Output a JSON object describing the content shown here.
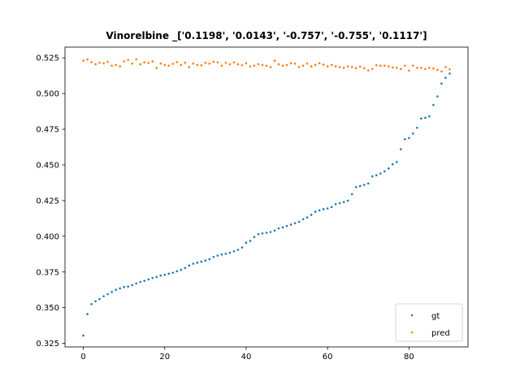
{
  "chart_data": {
    "type": "scatter",
    "title": "Vinorelbine _['0.1198', '0.0143', '-0.757', '-0.755', '0.1117']",
    "xlabel": "",
    "ylabel": "",
    "xlim": [
      -4.5,
      94.5
    ],
    "ylim": [
      0.3225,
      0.5325
    ],
    "xticks": [
      0,
      20,
      40,
      60,
      80
    ],
    "yticks": [
      0.325,
      0.35,
      0.375,
      0.4,
      0.425,
      0.45,
      0.475,
      0.5,
      0.525
    ],
    "ytick_labels": [
      "0.325",
      "0.350",
      "0.375",
      "0.400",
      "0.425",
      "0.450",
      "0.475",
      "0.500",
      "0.525"
    ],
    "grid": false,
    "legend_position": "lower right",
    "series": [
      {
        "name": "gt",
        "color": "#1f77b4",
        "x": [
          0,
          1,
          2,
          3,
          4,
          5,
          6,
          7,
          8,
          9,
          10,
          11,
          12,
          13,
          14,
          15,
          16,
          17,
          18,
          19,
          20,
          21,
          22,
          23,
          24,
          25,
          26,
          27,
          28,
          29,
          30,
          31,
          32,
          33,
          34,
          35,
          36,
          37,
          38,
          39,
          40,
          41,
          42,
          43,
          44,
          45,
          46,
          47,
          48,
          49,
          50,
          51,
          52,
          53,
          54,
          55,
          56,
          57,
          58,
          59,
          60,
          61,
          62,
          63,
          64,
          65,
          66,
          67,
          68,
          69,
          70,
          71,
          72,
          73,
          74,
          75,
          76,
          77,
          78,
          79,
          80,
          81,
          82,
          83,
          84,
          85,
          86,
          87,
          88,
          89,
          90
        ],
        "y": [
          0.3305,
          0.3455,
          0.3525,
          0.3545,
          0.356,
          0.358,
          0.3595,
          0.361,
          0.3625,
          0.3635,
          0.3645,
          0.3648,
          0.3658,
          0.367,
          0.368,
          0.3688,
          0.3698,
          0.3708,
          0.3715,
          0.3725,
          0.373,
          0.3738,
          0.3745,
          0.3755,
          0.3765,
          0.3778,
          0.3795,
          0.3808,
          0.3815,
          0.3822,
          0.383,
          0.384,
          0.3855,
          0.3865,
          0.3872,
          0.3878,
          0.3885,
          0.3895,
          0.3905,
          0.3922,
          0.3955,
          0.3968,
          0.3995,
          0.4015,
          0.402,
          0.4025,
          0.403,
          0.404,
          0.4055,
          0.4062,
          0.4072,
          0.4082,
          0.4092,
          0.4102,
          0.412,
          0.4132,
          0.415,
          0.4172,
          0.4182,
          0.419,
          0.4195,
          0.4205,
          0.4225,
          0.4232,
          0.424,
          0.425,
          0.4295,
          0.4345,
          0.4352,
          0.436,
          0.437,
          0.442,
          0.4428,
          0.444,
          0.4455,
          0.4475,
          0.4505,
          0.452,
          0.461,
          0.468,
          0.4688,
          0.472,
          0.476,
          0.4825,
          0.483,
          0.484,
          0.492,
          0.498,
          0.507,
          0.511,
          0.514
        ]
      },
      {
        "name": "pred",
        "color": "#ff7f0e",
        "x": [
          0,
          1,
          2,
          3,
          4,
          5,
          6,
          7,
          8,
          9,
          10,
          11,
          12,
          13,
          14,
          15,
          16,
          17,
          18,
          19,
          20,
          21,
          22,
          23,
          24,
          25,
          26,
          27,
          28,
          29,
          30,
          31,
          32,
          33,
          34,
          35,
          36,
          37,
          38,
          39,
          40,
          41,
          42,
          43,
          44,
          45,
          46,
          47,
          48,
          49,
          50,
          51,
          52,
          53,
          54,
          55,
          56,
          57,
          58,
          59,
          60,
          61,
          62,
          63,
          64,
          65,
          66,
          67,
          68,
          69,
          70,
          71,
          72,
          73,
          74,
          75,
          76,
          77,
          78,
          79,
          80,
          81,
          82,
          83,
          84,
          85,
          86,
          87,
          88,
          89,
          90
        ],
        "y": [
          0.523,
          0.5238,
          0.522,
          0.5205,
          0.5215,
          0.5212,
          0.5222,
          0.5195,
          0.52,
          0.519,
          0.5225,
          0.5235,
          0.521,
          0.524,
          0.5205,
          0.5218,
          0.5215,
          0.5225,
          0.518,
          0.521,
          0.52,
          0.5195,
          0.5208,
          0.522,
          0.52,
          0.5215,
          0.5185,
          0.521,
          0.52,
          0.5198,
          0.5215,
          0.521,
          0.5222,
          0.5218,
          0.5195,
          0.5215,
          0.5205,
          0.5218,
          0.5205,
          0.5198,
          0.5212,
          0.519,
          0.5195,
          0.5205,
          0.52,
          0.5195,
          0.5185,
          0.523,
          0.5205,
          0.5195,
          0.52,
          0.5212,
          0.521,
          0.5185,
          0.5195,
          0.521,
          0.519,
          0.52,
          0.5212,
          0.5202,
          0.519,
          0.52,
          0.519,
          0.5185,
          0.518,
          0.519,
          0.5185,
          0.5178,
          0.5188,
          0.5178,
          0.5162,
          0.5172,
          0.5198,
          0.5195,
          0.5195,
          0.519,
          0.5182,
          0.518,
          0.5172,
          0.5195,
          0.516,
          0.5195,
          0.518,
          0.518,
          0.5172,
          0.518,
          0.5175,
          0.5165,
          0.5155,
          0.5185,
          0.517
        ]
      }
    ]
  }
}
